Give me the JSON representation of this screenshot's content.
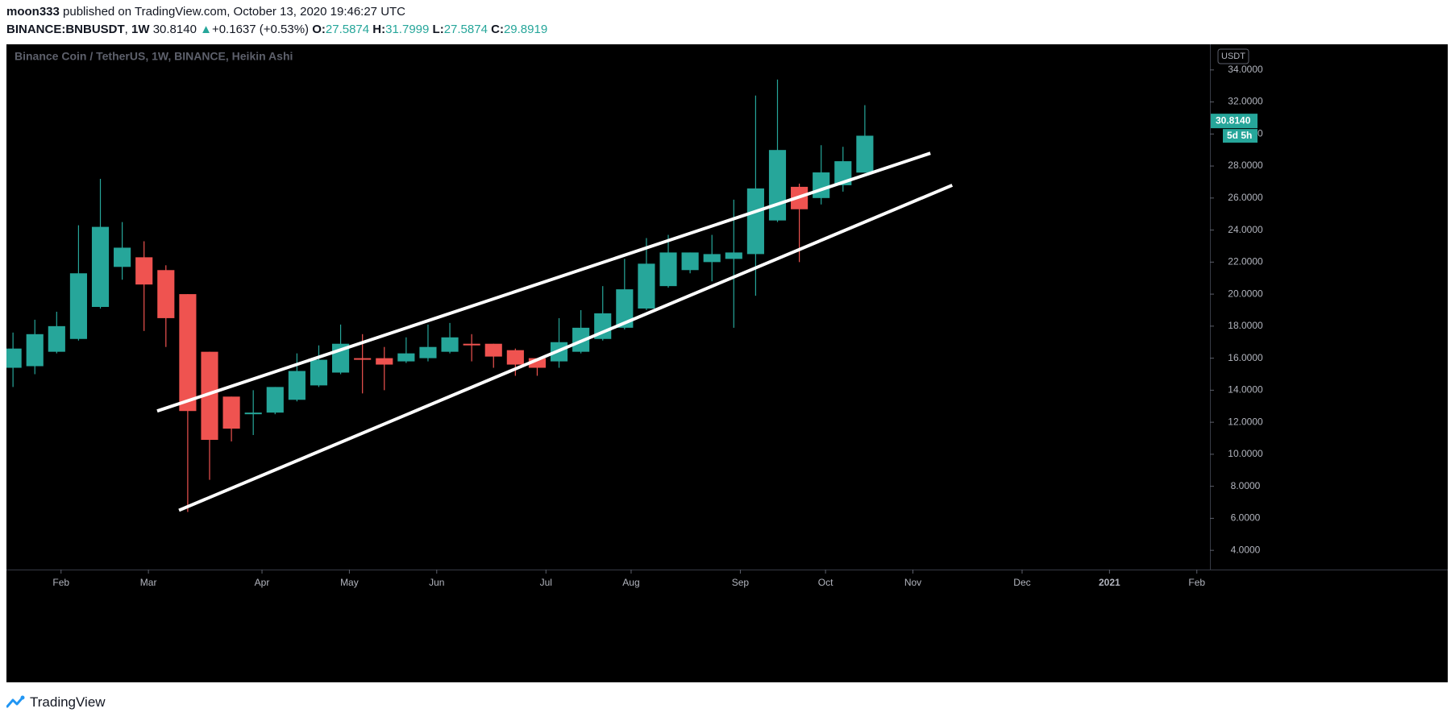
{
  "header": {
    "author": "moon333",
    "published_text": "published on TradingView.com, October 13, 2020 19:46:27 UTC",
    "symbol": "BINANCE:BNBUSDT",
    "interval": "1W",
    "last": "30.8140",
    "change_arrow": "▲",
    "change": "+0.1637 (+0.53%)",
    "o_label": "O:",
    "o_value": "27.5874",
    "h_label": "H:",
    "h_value": "31.7999",
    "l_label": "L:",
    "l_value": "27.5874",
    "c_label": "C:",
    "c_value": "29.8919"
  },
  "footer": {
    "brand": "TradingView",
    "logo_icon": "tradingview-logo-icon"
  },
  "colors": {
    "up": "#26a69a",
    "down": "#ef5350",
    "background": "#000000",
    "axis_text": "#b2b5be",
    "line": "#ffffff",
    "price_badge": "#26a69a"
  },
  "chart_data": {
    "type": "candlestick",
    "chart_style": "Heikin Ashi",
    "title": "Binance Coin / TetherUS, 1W, BINANCE, Heikin Ashi",
    "currency": "USDT",
    "last_price_label": "30.8140",
    "countdown_label": "5d 5h",
    "y_axis_ticks": [
      "34.0000",
      "32.0000",
      "30.0000",
      "28.0000",
      "26.0000",
      "24.0000",
      "22.0000",
      "20.0000",
      "18.0000",
      "16.0000",
      "14.0000",
      "12.0000",
      "10.0000",
      "8.0000",
      "6.0000",
      "4.0000"
    ],
    "y_tick_values": [
      34,
      32,
      30,
      28,
      26,
      24,
      22,
      20,
      18,
      16,
      14,
      12,
      10,
      8,
      6,
      4
    ],
    "ylim": [
      2.8,
      35.6
    ],
    "x_axis_labels": [
      {
        "label": "Feb",
        "bar": 2.2
      },
      {
        "label": "Mar",
        "bar": 6.2
      },
      {
        "label": "Apr",
        "bar": 11.4
      },
      {
        "label": "May",
        "bar": 15.4
      },
      {
        "label": "Jun",
        "bar": 19.4
      },
      {
        "label": "Jul",
        "bar": 24.4
      },
      {
        "label": "Aug",
        "bar": 28.3
      },
      {
        "label": "Sep",
        "bar": 33.3
      },
      {
        "label": "Oct",
        "bar": 37.2
      },
      {
        "label": "Nov",
        "bar": 41.2
      },
      {
        "label": "Dec",
        "bar": 46.2
      },
      {
        "label": "2021",
        "bar": 50.2
      },
      {
        "label": "Feb",
        "bar": 54.2
      }
    ],
    "bar_index_range": [
      -0.3,
      54.8
    ],
    "candles": [
      {
        "open": 15.4,
        "high": 17.6,
        "low": 14.2,
        "close": 16.6
      },
      {
        "open": 15.5,
        "high": 18.4,
        "low": 15.0,
        "close": 17.5
      },
      {
        "open": 16.4,
        "high": 18.9,
        "low": 16.3,
        "close": 18.0
      },
      {
        "open": 17.2,
        "high": 24.3,
        "low": 17.1,
        "close": 21.3
      },
      {
        "open": 19.2,
        "high": 27.2,
        "low": 19.1,
        "close": 24.2
      },
      {
        "open": 21.7,
        "high": 24.5,
        "low": 20.9,
        "close": 22.9
      },
      {
        "open": 22.3,
        "high": 23.3,
        "low": 17.7,
        "close": 20.6
      },
      {
        "open": 21.5,
        "high": 21.8,
        "low": 16.7,
        "close": 18.5
      },
      {
        "open": 20.0,
        "high": 20.0,
        "low": 6.4,
        "close": 12.7
      },
      {
        "open": 16.4,
        "high": 16.4,
        "low": 8.4,
        "close": 10.9
      },
      {
        "open": 13.6,
        "high": 13.6,
        "low": 10.8,
        "close": 11.6
      },
      {
        "open": 12.5,
        "high": 14.0,
        "low": 11.2,
        "close": 12.6
      },
      {
        "open": 12.6,
        "high": 14.2,
        "low": 12.5,
        "close": 14.2
      },
      {
        "open": 13.4,
        "high": 16.3,
        "low": 13.3,
        "close": 15.2
      },
      {
        "open": 14.3,
        "high": 16.8,
        "low": 14.2,
        "close": 15.9
      },
      {
        "open": 15.1,
        "high": 18.1,
        "low": 15.0,
        "close": 16.9
      },
      {
        "open": 16.0,
        "high": 17.5,
        "low": 13.8,
        "close": 15.9
      },
      {
        "open": 16.0,
        "high": 16.7,
        "low": 14.0,
        "close": 15.6
      },
      {
        "open": 15.8,
        "high": 17.3,
        "low": 15.7,
        "close": 16.3
      },
      {
        "open": 16.0,
        "high": 18.1,
        "low": 15.8,
        "close": 16.7
      },
      {
        "open": 16.4,
        "high": 18.2,
        "low": 16.3,
        "close": 17.3
      },
      {
        "open": 16.9,
        "high": 17.5,
        "low": 15.8,
        "close": 16.8
      },
      {
        "open": 16.9,
        "high": 16.9,
        "low": 15.4,
        "close": 16.1
      },
      {
        "open": 16.5,
        "high": 16.6,
        "low": 14.9,
        "close": 15.6
      },
      {
        "open": 16.0,
        "high": 16.0,
        "low": 14.9,
        "close": 15.4
      },
      {
        "open": 15.8,
        "high": 18.5,
        "low": 15.4,
        "close": 17.0
      },
      {
        "open": 16.4,
        "high": 19.0,
        "low": 16.3,
        "close": 17.9
      },
      {
        "open": 17.2,
        "high": 20.5,
        "low": 17.1,
        "close": 18.8
      },
      {
        "open": 17.9,
        "high": 22.2,
        "low": 17.8,
        "close": 20.3
      },
      {
        "open": 19.1,
        "high": 23.5,
        "low": 19.0,
        "close": 21.9
      },
      {
        "open": 20.5,
        "high": 23.7,
        "low": 20.4,
        "close": 22.6
      },
      {
        "open": 21.5,
        "high": 22.6,
        "low": 21.3,
        "close": 22.6
      },
      {
        "open": 22.0,
        "high": 23.7,
        "low": 20.8,
        "close": 22.5
      },
      {
        "open": 22.2,
        "high": 25.9,
        "low": 17.9,
        "close": 22.6
      },
      {
        "open": 22.5,
        "high": 32.4,
        "low": 19.9,
        "close": 26.6
      },
      {
        "open": 24.6,
        "high": 33.4,
        "low": 24.5,
        "close": 29.0
      },
      {
        "open": 26.7,
        "high": 26.9,
        "low": 22.0,
        "close": 25.3
      },
      {
        "open": 26.0,
        "high": 29.3,
        "low": 25.6,
        "close": 27.6
      },
      {
        "open": 26.8,
        "high": 29.2,
        "low": 26.4,
        "close": 28.3
      },
      {
        "open": 27.5874,
        "high": 31.7999,
        "low": 27.5874,
        "close": 29.8919
      }
    ],
    "trendlines": [
      {
        "name": "upper-channel-line",
        "from": {
          "bar": 6.6,
          "price": 12.7
        },
        "to": {
          "bar": 42.0,
          "price": 28.8
        }
      },
      {
        "name": "lower-channel-line",
        "from": {
          "bar": 7.6,
          "price": 6.5
        },
        "to": {
          "bar": 43.0,
          "price": 26.8
        }
      }
    ]
  }
}
